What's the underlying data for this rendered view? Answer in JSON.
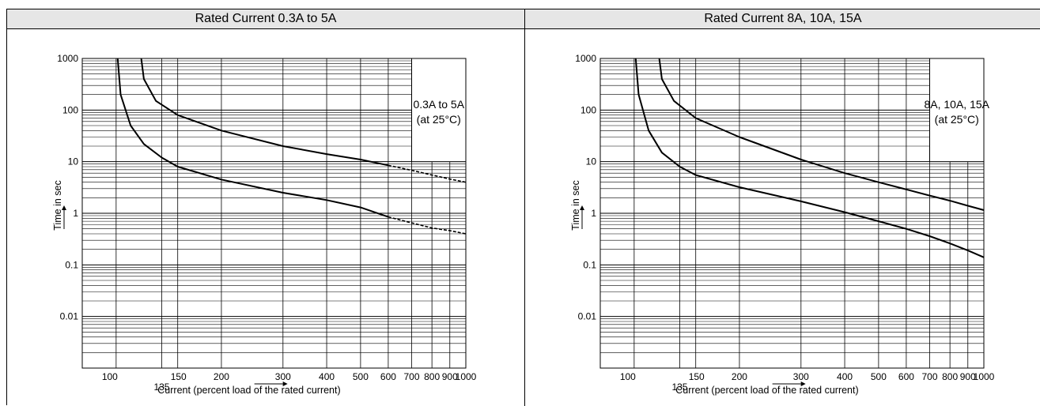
{
  "chart_data": [
    {
      "type": "line",
      "panel_title": "Rated Current 0.3A to 5A",
      "annotation": [
        "0.3A to 5A",
        "(at 25°C)"
      ],
      "xlabel": "Current (percent load of the rated current)",
      "ylabel": "Time in sec",
      "x_scale": "log",
      "y_scale": "log",
      "xlim": [
        80,
        1000
      ],
      "ylim": [
        0.001,
        1000
      ],
      "x_ticks": [
        100,
        135,
        150,
        200,
        300,
        400,
        500,
        600,
        700,
        800,
        900,
        1000
      ],
      "y_ticks": [
        1000,
        100,
        10,
        1,
        0.1,
        0.01
      ],
      "y_tick_labels": [
        "1000",
        "100",
        "10",
        "1",
        "0.1",
        "0.01"
      ],
      "grid": true,
      "series": [
        {
          "line_style": "solid",
          "x": [
            101,
            103,
            110,
            120,
            135,
            150,
            200,
            300,
            400,
            500,
            600
          ],
          "y": [
            1000,
            200,
            50,
            22,
            12,
            8,
            4.5,
            2.5,
            1.8,
            1.3,
            0.85
          ]
        },
        {
          "line_style": "dashed",
          "x": [
            600,
            700,
            800,
            900,
            1000
          ],
          "y": [
            0.85,
            0.65,
            0.52,
            0.46,
            0.4
          ]
        },
        {
          "line_style": "solid",
          "x": [
            118,
            120,
            130,
            150,
            200,
            300,
            400,
            500,
            600
          ],
          "y": [
            1000,
            400,
            150,
            80,
            40,
            20,
            14,
            11,
            8.5
          ]
        },
        {
          "line_style": "dashed",
          "x": [
            600,
            700,
            800,
            900,
            1000
          ],
          "y": [
            8.5,
            6.8,
            5.5,
            4.6,
            4
          ]
        }
      ]
    },
    {
      "type": "line",
      "panel_title": "Rated Current 8A, 10A, 15A",
      "annotation": [
        "8A, 10A, 15A",
        "(at 25°C)"
      ],
      "xlabel": "Current (percent load of the rated current)",
      "ylabel": "Time in sec",
      "x_scale": "log",
      "y_scale": "log",
      "xlim": [
        80,
        1000
      ],
      "ylim": [
        0.001,
        1000
      ],
      "x_ticks": [
        100,
        135,
        150,
        200,
        300,
        400,
        500,
        600,
        700,
        800,
        900,
        1000
      ],
      "y_ticks": [
        1000,
        100,
        10,
        1,
        0.1,
        0.01
      ],
      "y_tick_labels": [
        "1000",
        "100",
        "10",
        "1",
        "0.1",
        "0.01"
      ],
      "grid": true,
      "series": [
        {
          "line_style": "solid",
          "x": [
            101,
            103,
            110,
            120,
            135,
            150,
            200,
            300,
            400,
            500,
            600,
            700,
            800,
            900,
            1000
          ],
          "y": [
            1000,
            200,
            40,
            15,
            8,
            5.5,
            3.2,
            1.7,
            1.05,
            0.7,
            0.5,
            0.36,
            0.26,
            0.19,
            0.14
          ]
        },
        {
          "line_style": "solid",
          "x": [
            118,
            120,
            130,
            150,
            200,
            300,
            400,
            500,
            600,
            700,
            800,
            900,
            1000
          ],
          "y": [
            1000,
            400,
            150,
            70,
            30,
            11,
            6,
            4,
            2.9,
            2.2,
            1.75,
            1.4,
            1.15
          ]
        }
      ]
    }
  ]
}
